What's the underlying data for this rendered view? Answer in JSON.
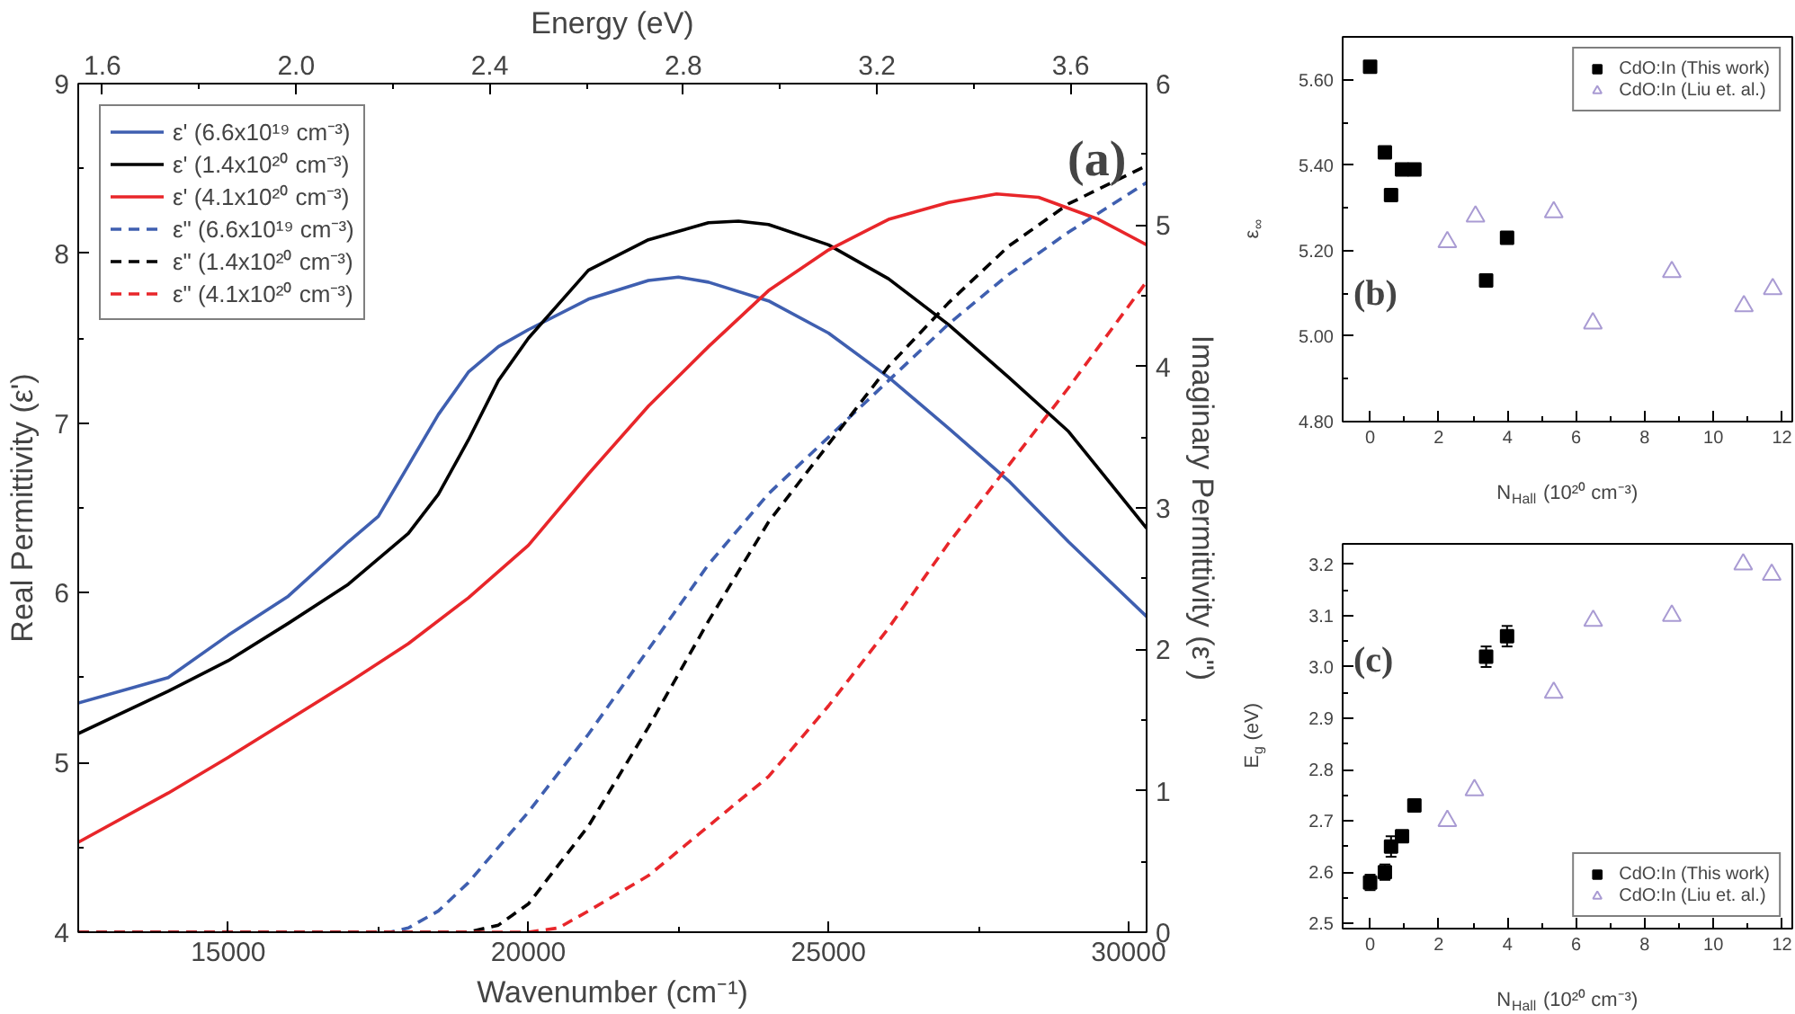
{
  "chart_data": [
    {
      "type": "line",
      "xlabel": "Wavenumber (cm⁻¹)",
      "ylabel": "Real Permittivity (ε')",
      "y2label": "Imaginary Permittivity (ε\")",
      "x2label": "Energy (eV)",
      "xlim": [
        12500,
        30300
      ],
      "xticks": [
        15000,
        20000,
        25000,
        30000
      ],
      "ylim": [
        4,
        9
      ],
      "yticks": [
        4,
        5,
        6,
        7,
        8,
        9
      ],
      "y2lim": [
        0,
        6
      ],
      "y2ticks": [
        0,
        1,
        2,
        3,
        4,
        5,
        6
      ],
      "x2lim": [
        1.55,
        3.757
      ],
      "x2ticks": [
        1.6,
        {
          "value": 2.0,
          "label": "2.0"
        },
        2.4,
        2.8,
        3.2,
        3.6
      ],
      "grid": false,
      "legend": "top left",
      "annotations": [
        "(a)"
      ],
      "series": [
        {
          "name": "ε' (6.6x10¹⁹ cm⁻³)",
          "color": "#3f5fb0",
          "line_style": "solid",
          "x": [
            12500,
            14000,
            15000,
            16000,
            17000,
            17500,
            18000,
            18500,
            19000,
            19500,
            20000,
            21000,
            22000,
            22500,
            23000,
            24000,
            25000,
            26000,
            27000,
            28000,
            29000,
            30300
          ],
          "values": [
            5.35,
            5.5,
            5.75,
            5.98,
            6.3,
            6.45,
            6.75,
            7.05,
            7.3,
            7.45,
            7.55,
            7.73,
            7.84,
            7.86,
            7.83,
            7.72,
            7.53,
            7.27,
            6.97,
            6.66,
            6.3,
            5.86
          ]
        },
        {
          "name": "ε' (1.4x10²⁰ cm⁻³)",
          "color": "#000000",
          "line_style": "solid",
          "x": [
            12500,
            14000,
            15000,
            16000,
            17000,
            18000,
            18500,
            19000,
            19500,
            20000,
            21000,
            22000,
            23000,
            23500,
            24000,
            25000,
            26000,
            27000,
            28000,
            29000,
            30300
          ],
          "values": [
            5.17,
            5.42,
            5.6,
            5.82,
            6.05,
            6.35,
            6.58,
            6.9,
            7.25,
            7.5,
            7.9,
            8.08,
            8.18,
            8.19,
            8.17,
            8.05,
            7.85,
            7.58,
            7.27,
            6.95,
            6.38
          ]
        },
        {
          "name": "ε' (4.1x10²⁰ cm⁻³)",
          "color": "#e8262a",
          "line_style": "solid",
          "x": [
            12500,
            14000,
            15000,
            16000,
            17000,
            18000,
            19000,
            20000,
            21000,
            22000,
            23000,
            24000,
            25000,
            26000,
            27000,
            27800,
            28500,
            29500,
            30300
          ],
          "values": [
            4.53,
            4.82,
            5.03,
            5.25,
            5.47,
            5.7,
            5.97,
            6.28,
            6.7,
            7.1,
            7.45,
            7.78,
            8.02,
            8.2,
            8.3,
            8.35,
            8.33,
            8.2,
            8.05
          ]
        },
        {
          "name": "ε\" (6.6x10¹⁹ cm⁻³)",
          "color": "#3f5fb0",
          "line_style": "dashed",
          "axis": "y2",
          "x": [
            12500,
            17700,
            18000,
            18500,
            19000,
            20000,
            21000,
            22000,
            23000,
            24000,
            25000,
            26000,
            27000,
            28000,
            29000,
            30300
          ],
          "values": [
            0,
            0,
            0.03,
            0.15,
            0.35,
            0.85,
            1.4,
            2.0,
            2.6,
            3.1,
            3.5,
            3.9,
            4.3,
            4.65,
            4.95,
            5.3
          ]
        },
        {
          "name": "ε\" (1.4x10²⁰ cm⁻³)",
          "color": "#000000",
          "line_style": "dashed",
          "axis": "y2",
          "x": [
            12500,
            19000,
            19500,
            20000,
            21000,
            22000,
            23000,
            24000,
            25000,
            26000,
            27000,
            28000,
            29000,
            30300
          ],
          "values": [
            0,
            0,
            0.05,
            0.2,
            0.75,
            1.45,
            2.2,
            2.9,
            3.45,
            4.0,
            4.45,
            4.85,
            5.15,
            5.42
          ]
        },
        {
          "name": "ε\" (4.1x10²⁰ cm⁻³)",
          "color": "#e8262a",
          "line_style": "dashed",
          "axis": "y2",
          "x": [
            12500,
            20000,
            20500,
            21000,
            22000,
            23000,
            24000,
            25000,
            26000,
            27000,
            28000,
            29000,
            30300
          ],
          "values": [
            0,
            0,
            0.03,
            0.15,
            0.4,
            0.75,
            1.1,
            1.6,
            2.15,
            2.75,
            3.3,
            3.85,
            4.6
          ]
        }
      ]
    },
    {
      "type": "scatter",
      "xlabel": "N$_{Hall}$ (10²⁰ cm⁻³)",
      "ylabel": "ε$_{∞}$",
      "xlim": [
        -0.8,
        12.3
      ],
      "xticks": [
        0,
        2,
        4,
        6,
        8,
        10,
        12
      ],
      "ylim": [
        4.8,
        5.7
      ],
      "yticks": [
        {
          "value": 4.8,
          "label": "4.80"
        },
        {
          "value": 5.0,
          "label": "5.00"
        },
        {
          "value": 5.2,
          "label": "5.20"
        },
        {
          "value": 5.4,
          "label": "5.40"
        },
        {
          "value": 5.6,
          "label": "5.60"
        }
      ],
      "grid": false,
      "legend": "top right",
      "annotations": [
        "(b)"
      ],
      "series": [
        {
          "name": "CdO:In (This work)",
          "color": "#000000",
          "marker": "square",
          "x": [
            0,
            0.43,
            0.61,
            0.93,
            1.29,
            3.38,
            3.99
          ],
          "values": [
            5.63,
            5.43,
            5.33,
            5.39,
            5.39,
            5.13,
            5.23
          ]
        },
        {
          "name": "CdO:In (Liu et. al.)",
          "color": "#a99bd3",
          "marker": "triangle",
          "x": [
            2.25,
            3.07,
            5.35,
            6.49,
            8.79,
            10.89,
            11.73
          ],
          "values": [
            5.22,
            5.28,
            5.29,
            5.03,
            5.15,
            5.07,
            5.11
          ]
        }
      ]
    },
    {
      "type": "scatter",
      "xlabel": "N$_{Hall}$ (10²⁰ cm⁻³)",
      "ylabel": "E$_{g}$ (eV)",
      "xlim": [
        -0.8,
        12.3
      ],
      "xticks": [
        0,
        2,
        4,
        6,
        8,
        10,
        12
      ],
      "ylim": [
        2.49,
        3.24
      ],
      "yticks": [
        2.5,
        2.6,
        2.7,
        2.8,
        2.9,
        {
          "value": 3.0,
          "label": "3.0"
        },
        3.1,
        3.2
      ],
      "grid": false,
      "legend": "bottom right",
      "annotations": [
        "(c)"
      ],
      "series": [
        {
          "name": "CdO:In (This work)",
          "color": "#000000",
          "marker": "square",
          "x": [
            0,
            0.43,
            0.61,
            0.93,
            1.29,
            3.38,
            3.99
          ],
          "values": [
            2.58,
            2.6,
            2.65,
            2.67,
            2.73,
            3.02,
            3.06
          ],
          "errors": [
            0.015,
            0.015,
            0.02,
            null,
            null,
            0.02,
            0.02
          ]
        },
        {
          "name": "CdO:In (Liu et. al.)",
          "color": "#a99bd3",
          "marker": "triangle",
          "x": [
            2.25,
            3.04,
            5.35,
            6.5,
            8.79,
            10.87,
            11.7
          ],
          "values": [
            2.7,
            2.76,
            2.95,
            3.09,
            3.1,
            3.2,
            3.18
          ]
        }
      ]
    }
  ]
}
